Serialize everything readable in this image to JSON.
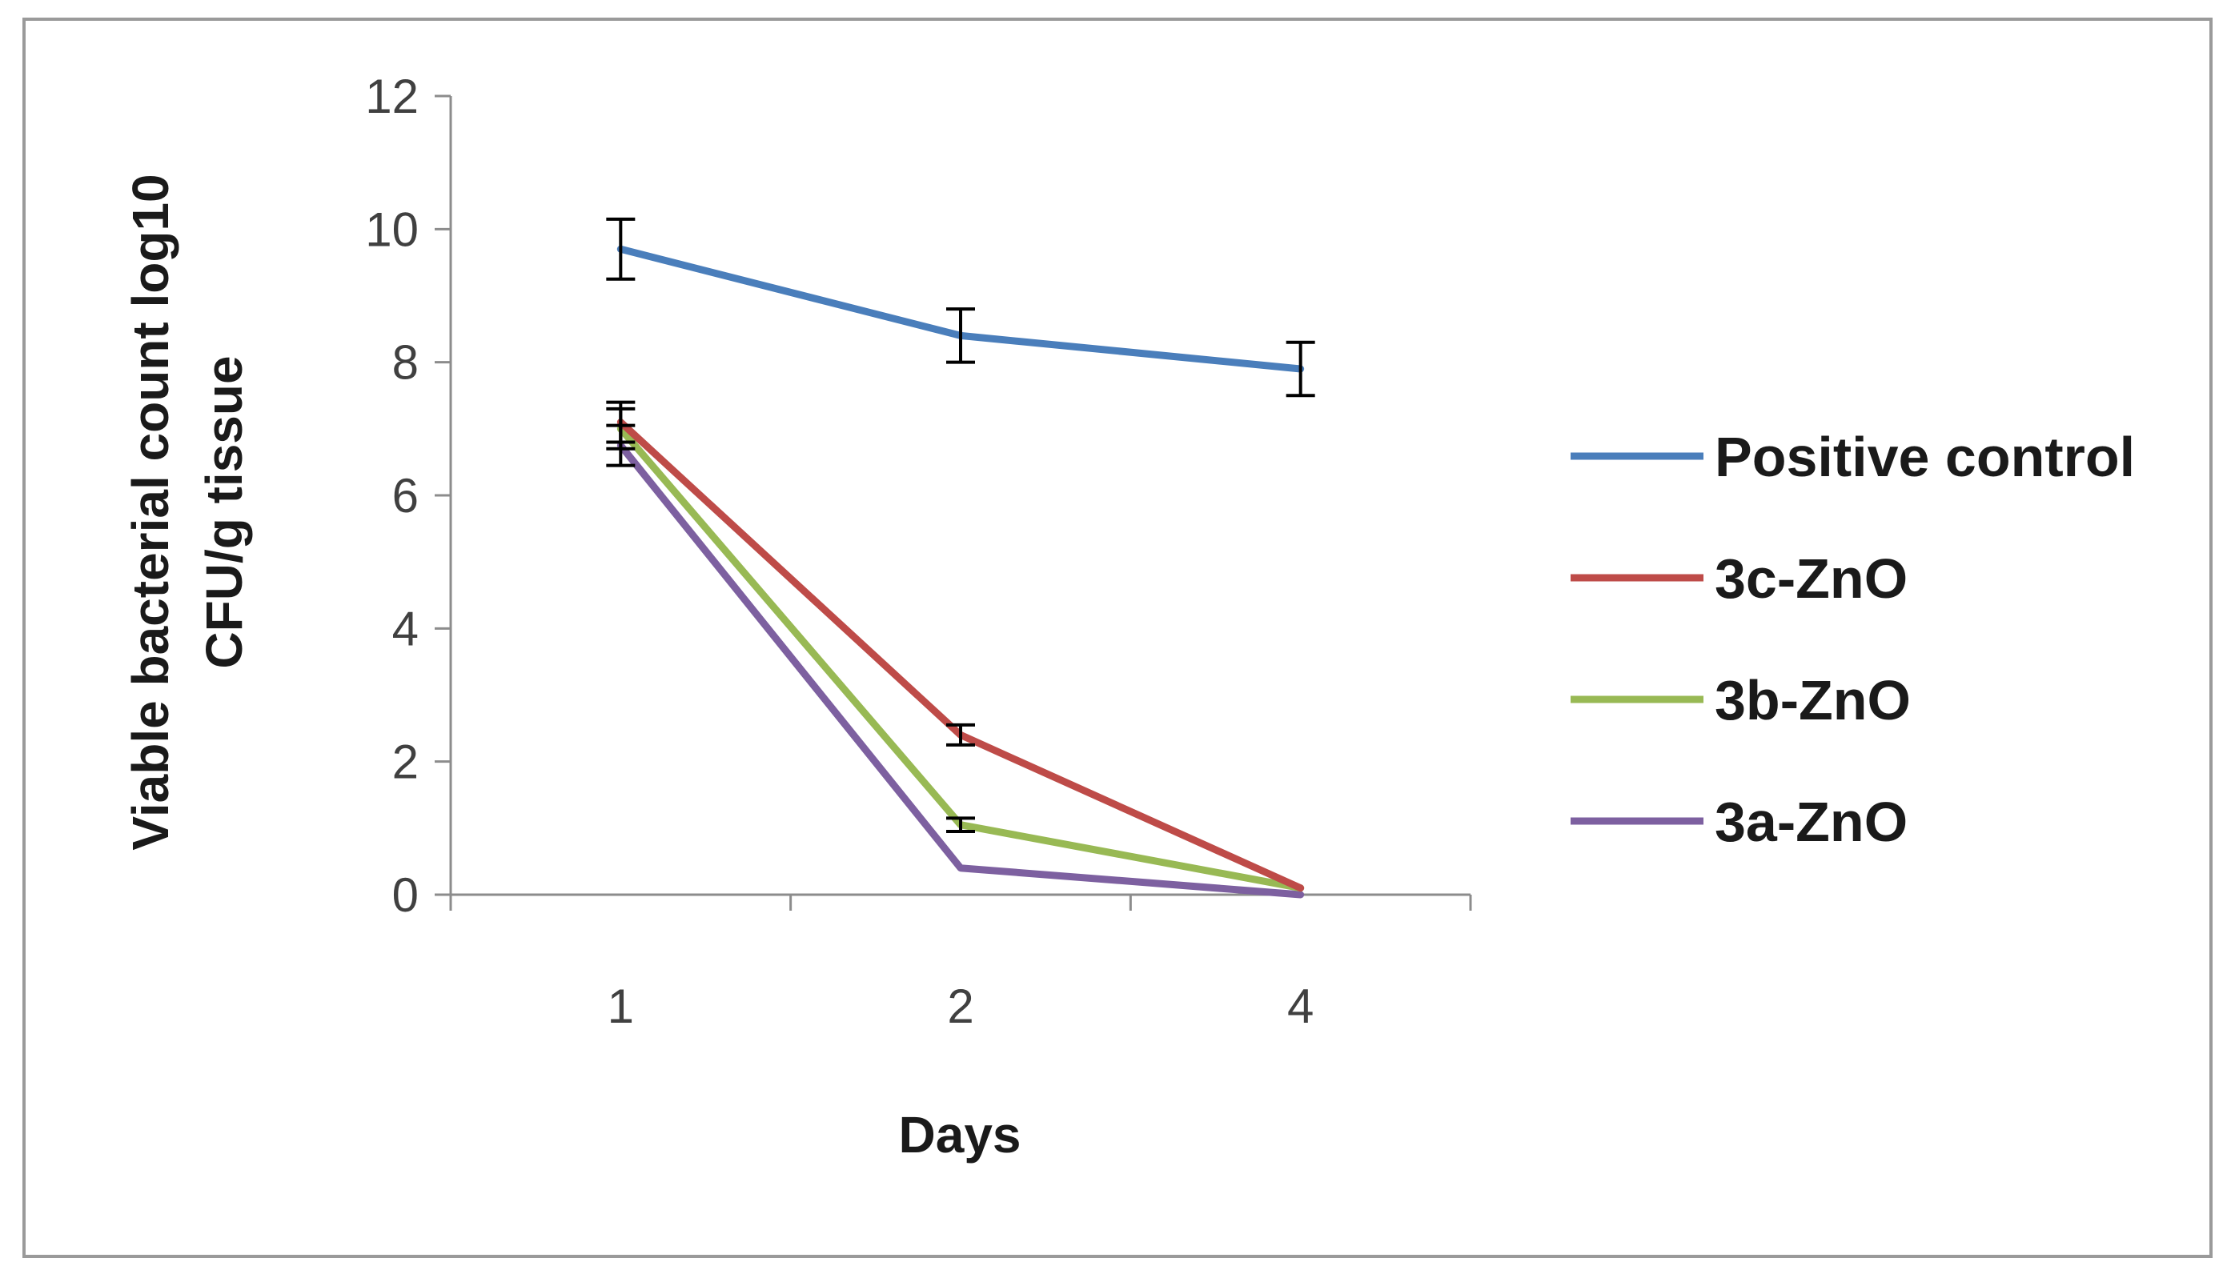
{
  "chart_data": {
    "type": "line",
    "title": "",
    "categories": [
      "1",
      "2",
      "4"
    ],
    "xlabel": "Days",
    "ylabel_lines": [
      "Viable bacterial count log10",
      "CFU/g tissue"
    ],
    "ylim": [
      0,
      12
    ],
    "yticks": [
      0,
      2,
      4,
      6,
      8,
      10,
      12
    ],
    "grid": false,
    "legend_position": "right",
    "series": [
      {
        "name": "Positive control",
        "color": "#4a7ebb",
        "values": [
          9.7,
          8.4,
          7.9
        ],
        "errors": [
          0.45,
          0.4,
          0.4
        ]
      },
      {
        "name": "3c-ZnO",
        "color": "#be4b48",
        "values": [
          7.1,
          2.4,
          0.1
        ],
        "errors": [
          0.3,
          0.15,
          0
        ]
      },
      {
        "name": "3b-ZnO",
        "color": "#98b954",
        "values": [
          7.0,
          1.05,
          0.1
        ],
        "errors": [
          0.3,
          0.1,
          0
        ]
      },
      {
        "name": "3a-ZnO",
        "color": "#7d60a0",
        "values": [
          6.75,
          0.4,
          0.0
        ],
        "errors": [
          0.3,
          0,
          0
        ]
      }
    ]
  }
}
